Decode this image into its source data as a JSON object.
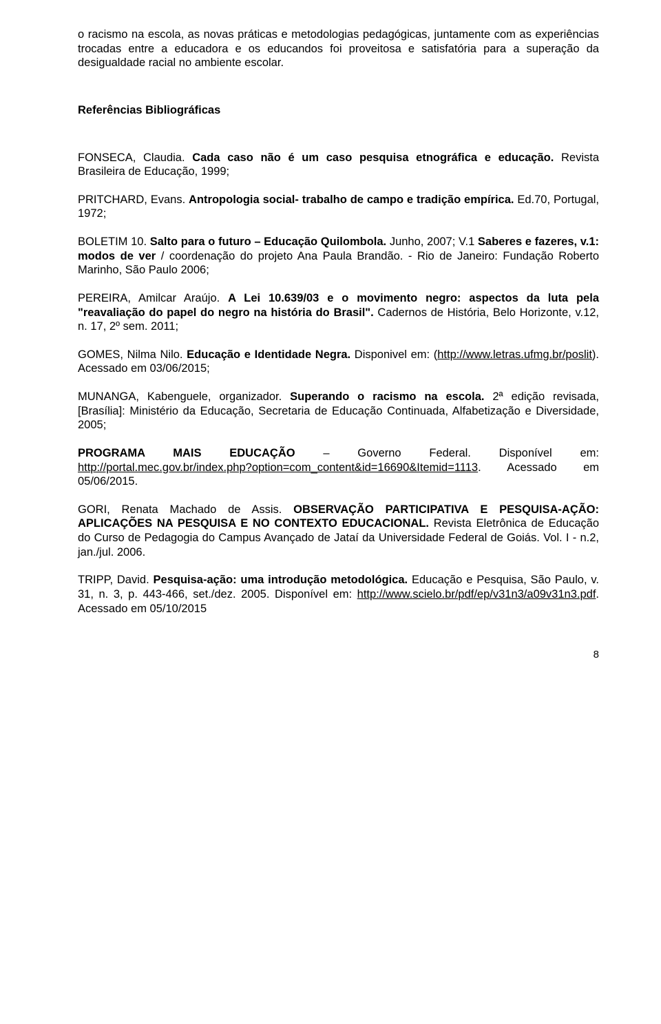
{
  "para1": "o racismo na escola, as novas práticas e metodologias pedagógicas, juntamente com as experiências trocadas entre a educadora e os educandos foi proveitosa e satisfatória para a superação da desigualdade racial no ambiente escolar.",
  "heading": "Referências Bibliográficas",
  "refs": {
    "fonseca": {
      "a": "FONSECA, Claudia. ",
      "b": "Cada caso não é um caso pesquisa etnográfica e educação.",
      "c": " Revista Brasileira de Educação, 1999;"
    },
    "pritchard": {
      "a": "PRITCHARD, Evans. ",
      "b": "Antropologia social- trabalho de campo e tradição empírica.",
      "c": " Ed.70, Portugal, 1972;"
    },
    "boletim": {
      "a": "BOLETIM 10. ",
      "b": "Salto para o futuro – Educação Quilombola.",
      "c": " Junho, 2007; V.1 ",
      "d": "Saberes e fazeres, v.1: modos de ver",
      "e": " / coordenação do projeto Ana Paula Brandão. - Rio de Janeiro: Fundação Roberto Marinho, São Paulo 2006;"
    },
    "pereira": {
      "a": "PEREIRA, Amilcar Araújo. ",
      "b": "A Lei 10.639/03 e o movimento negro: aspectos da luta pela \"reavaliação do papel do negro na história do Brasil\".",
      "c": " Cadernos de História, Belo Horizonte, v.12, n. 17, 2º sem. 2011;"
    },
    "gomes": {
      "a": "GOMES, Nilma Nilo. ",
      "b": "Educação e Identidade Negra.",
      "c": " Disponivel em: (",
      "link": "http://www.letras.ufmg.br/poslit",
      "d": "). Acessado em 03/06/2015;"
    },
    "munanga": {
      "a": "MUNANGA, Kabenguele, organizador. ",
      "b": "Superando o racismo na escola.",
      "c": " 2ª edição revisada, [Brasília]: Ministério da Educação, Secretaria de Educação Continuada, Alfabetização e Diversidade, 2005;"
    },
    "programa": {
      "a": "PROGRAMA MAIS EDUCAÇÃO",
      "b": " – Governo Federal. Disponível em: ",
      "link": "http://portal.mec.gov.br/index.php?option=com_content&id=16690&Itemid=1113",
      "c": ". Acessado em 05/06/2015."
    },
    "gori": {
      "a": "GORI, Renata Machado de Assis. ",
      "b": "OBSERVAÇÃO PARTICIPATIVA E PESQUISA-AÇÃO: APLICAÇÕES NA PESQUISA E NO CONTEXTO EDUCACIONAL.",
      "c": " Revista Eletrônica de Educação do Curso de Pedagogia do Campus Avançado de Jataí da Universidade Federal de Goiás. Vol. I - n.2, jan./jul. 2006."
    },
    "tripp": {
      "a": "TRIPP, David. ",
      "b": "Pesquisa-ação: uma introdução metodológica.",
      "c": " Educação e Pesquisa, São Paulo, v. 31, n. 3, p. 443-466, set./dez. 2005. Disponível em: ",
      "link": "http://www.scielo.br/pdf/ep/v31n3/a09v31n3.pdf",
      "d": ". Acessado em 05/10/2015"
    }
  },
  "pageNumber": "8"
}
